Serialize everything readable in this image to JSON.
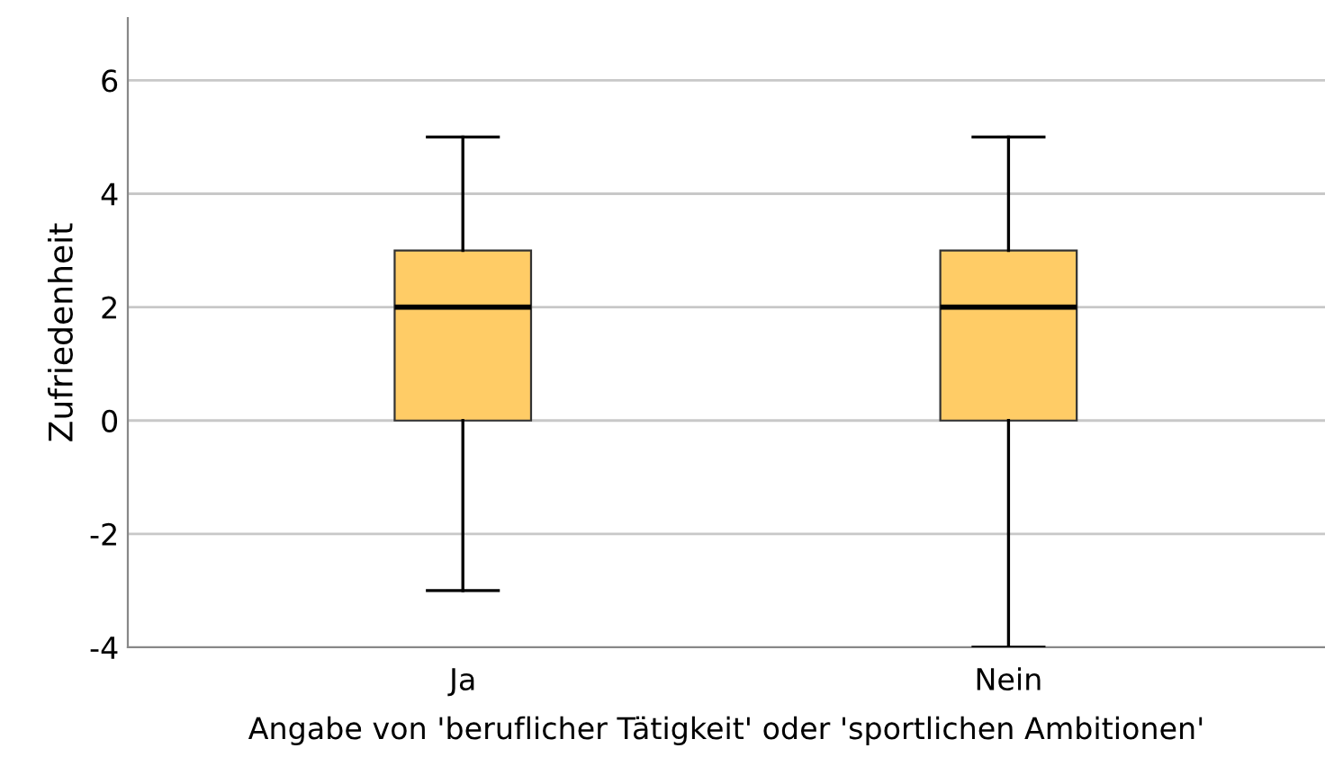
{
  "chart_data": {
    "type": "box",
    "xlabel": "Angabe von 'beruflicher Tätigkeit' oder 'sportlichen Ambitionen'",
    "ylabel": "Zufriedenheit",
    "categories": [
      "Ja",
      "Nein"
    ],
    "boxes": [
      {
        "low": -3,
        "q1": 0,
        "median": 2,
        "q3": 3,
        "high": 5
      },
      {
        "low": -4,
        "q1": 0,
        "median": 2,
        "q3": 3,
        "high": 5
      }
    ],
    "color": "#ffcc66",
    "ylim": [
      -4,
      7.1
    ],
    "yticks": [
      -4,
      -2,
      0,
      2,
      4,
      6
    ],
    "grid": "y"
  }
}
